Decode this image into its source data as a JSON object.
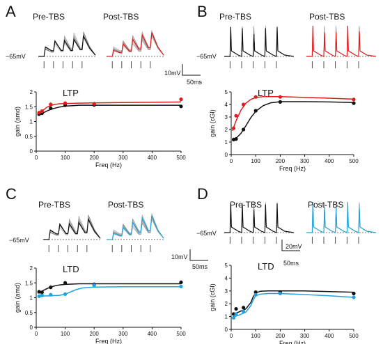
{
  "colors": {
    "pre": "#111111",
    "post_ltp": "#e01b1b",
    "post_ltd": "#1fa3dc",
    "trace_gray": "#7a7a7a"
  },
  "panels": [
    {
      "letter": "A",
      "pre_label": "Pre-TBS",
      "post_label": "Post-TBS",
      "baseline_label": "−65mV",
      "trace_kind": "epsp",
      "post_color": "#e01b1b",
      "scale_bar": {
        "v_label": "10mV",
        "t_label": "50ms"
      },
      "chart_data": {
        "type": "line",
        "title": "LTP",
        "xlabel": "Freq (Hz)",
        "ylabel": "gain (amd)",
        "xlim": [
          0,
          500
        ],
        "ylim": [
          0,
          2
        ],
        "xticks": [
          0,
          100,
          200,
          300,
          400,
          500
        ],
        "yticks": [
          0,
          0.5,
          1,
          1.5,
          2
        ],
        "ytick_labels": [
          "0",
          "0.5",
          "1",
          "1.5",
          "2"
        ],
        "series": [
          {
            "key": "pre",
            "color": "#111111",
            "x": [
              10,
              20,
              50,
              100,
              200,
              500
            ],
            "y": [
              1.25,
              1.28,
              1.45,
              1.55,
              1.56,
              1.51
            ],
            "fit_x": [
              5,
              20,
              40,
              60,
              80,
              100,
              150,
              200,
              300,
              400,
              500
            ],
            "fit_y": [
              1.2,
              1.27,
              1.37,
              1.44,
              1.49,
              1.52,
              1.55,
              1.55,
              1.55,
              1.55,
              1.55
            ]
          },
          {
            "key": "post",
            "color": "#e01b1b",
            "x": [
              10,
              20,
              50,
              100,
              200,
              500
            ],
            "y": [
              1.3,
              1.35,
              1.58,
              1.62,
              1.6,
              1.75
            ],
            "fit_x": [
              5,
              20,
              40,
              60,
              80,
              100,
              150,
              200,
              300,
              400,
              500
            ],
            "fit_y": [
              1.26,
              1.36,
              1.5,
              1.57,
              1.6,
              1.61,
              1.62,
              1.63,
              1.64,
              1.65,
              1.66
            ]
          }
        ]
      }
    },
    {
      "letter": "B",
      "pre_label": "Pre-TBS",
      "post_label": "Post-TBS",
      "baseline_label": "−65mV",
      "trace_kind": "spike",
      "post_color": "#e01b1b",
      "scale_bar": null,
      "chart_data": {
        "type": "line",
        "title": "LTP",
        "xlabel": "Freq (Hz)",
        "ylabel": "gain (cGI)",
        "xlim": [
          0,
          500
        ],
        "ylim": [
          0,
          5
        ],
        "xticks": [
          0,
          100,
          200,
          300,
          400,
          500
        ],
        "yticks": [
          0,
          1,
          2,
          3,
          4,
          5
        ],
        "ytick_labels": [
          "0",
          "1",
          "2",
          "3",
          "4",
          "5"
        ],
        "series": [
          {
            "key": "pre",
            "color": "#111111",
            "x": [
              10,
              20,
              50,
              100,
              200,
              500
            ],
            "y": [
              1.2,
              1.25,
              2.0,
              3.5,
              4.2,
              4.1
            ],
            "fit_x": [
              5,
              20,
              40,
              60,
              80,
              100,
              130,
              160,
              200,
              300,
              400,
              500
            ],
            "fit_y": [
              1.15,
              1.3,
              1.7,
              2.3,
              2.95,
              3.45,
              3.9,
              4.12,
              4.22,
              4.22,
              4.2,
              4.15
            ]
          },
          {
            "key": "post",
            "color": "#e01b1b",
            "x": [
              10,
              20,
              50,
              100,
              200,
              500
            ],
            "y": [
              2.1,
              3.1,
              4.0,
              4.6,
              4.6,
              4.4
            ],
            "fit_x": [
              5,
              20,
              40,
              60,
              80,
              100,
              130,
              160,
              200,
              300,
              400,
              500
            ],
            "fit_y": [
              1.9,
              2.7,
              3.55,
              4.1,
              4.4,
              4.55,
              4.62,
              4.63,
              4.62,
              4.56,
              4.5,
              4.42
            ]
          }
        ]
      }
    },
    {
      "letter": "C",
      "pre_label": "Pre-TBS",
      "post_label": "Post-TBS",
      "baseline_label": "−65mV",
      "trace_kind": "epsp",
      "post_color": "#1fa3dc",
      "scale_bar": {
        "v_label": "10mV",
        "t_label": "50ms"
      },
      "chart_data": {
        "type": "line",
        "title": "LTD",
        "xlabel": "Freq (Hz)",
        "ylabel": "gain (amd)",
        "xlim": [
          0,
          500
        ],
        "ylim": [
          0,
          2
        ],
        "xticks": [
          0,
          100,
          200,
          300,
          400,
          500
        ],
        "yticks": [
          0,
          0.5,
          1,
          1.5,
          2
        ],
        "ytick_labels": [
          "0",
          "0.5",
          "1",
          "1.5",
          "2"
        ],
        "series": [
          {
            "key": "pre",
            "color": "#111111",
            "x": [
              10,
              20,
              50,
              100,
              200,
              500
            ],
            "y": [
              1.2,
              1.18,
              1.35,
              1.5,
              1.45,
              1.52
            ],
            "fit_x": [
              5,
              20,
              40,
              60,
              80,
              100,
              150,
              200,
              300,
              400,
              500
            ],
            "fit_y": [
              1.15,
              1.22,
              1.32,
              1.39,
              1.43,
              1.45,
              1.47,
              1.47,
              1.47,
              1.47,
              1.47
            ]
          },
          {
            "key": "post",
            "color": "#1fa3dc",
            "x": [
              10,
              20,
              50,
              100,
              200,
              500
            ],
            "y": [
              1.05,
              1.08,
              1.1,
              1.12,
              1.42,
              1.38
            ],
            "fit_x": [
              5,
              40,
              80,
              100,
              120,
              140,
              160,
              200,
              300,
              400,
              500
            ],
            "fit_y": [
              1.05,
              1.06,
              1.08,
              1.12,
              1.2,
              1.28,
              1.33,
              1.36,
              1.37,
              1.37,
              1.37
            ]
          }
        ]
      }
    },
    {
      "letter": "D",
      "pre_label": "Pre-TBS",
      "post_label": "Post-TBS",
      "baseline_label": "−65mV",
      "trace_kind": "spike",
      "post_color": "#1fa3dc",
      "scale_bar": {
        "v_label": "20mV",
        "t_label": "50ms"
      },
      "chart_data": {
        "type": "line",
        "title": "LTD",
        "xlabel": "Freq (Hz)",
        "ylabel": "gain (cGI)",
        "xlim": [
          0,
          500
        ],
        "ylim": [
          0,
          5
        ],
        "xticks": [
          0,
          100,
          200,
          300,
          400,
          500
        ],
        "yticks": [
          0,
          1,
          2,
          3,
          4,
          5
        ],
        "ytick_labels": [
          "0",
          "1",
          "2",
          "3",
          "4",
          "5"
        ],
        "series": [
          {
            "key": "pre",
            "color": "#111111",
            "x": [
              10,
              20,
              50,
              100,
              200,
              500
            ],
            "y": [
              1.2,
              1.6,
              1.7,
              2.9,
              2.9,
              2.8
            ],
            "fit_x": [
              5,
              30,
              60,
              80,
              90,
              100,
              120,
              150,
              200,
              300,
              400,
              500
            ],
            "fit_y": [
              1.2,
              1.35,
              1.6,
              2.1,
              2.55,
              2.85,
              2.98,
              3.0,
              3.0,
              3.0,
              2.95,
              2.9
            ]
          },
          {
            "key": "post",
            "color": "#1fa3dc",
            "x": [
              10,
              20,
              50,
              100,
              200,
              500
            ],
            "y": [
              0.9,
              1.2,
              1.4,
              2.7,
              2.8,
              2.5
            ],
            "fit_x": [
              5,
              30,
              60,
              80,
              90,
              100,
              120,
              150,
              200,
              300,
              400,
              500
            ],
            "fit_y": [
              0.95,
              1.1,
              1.35,
              1.85,
              2.3,
              2.62,
              2.75,
              2.8,
              2.8,
              2.72,
              2.62,
              2.5
            ]
          }
        ]
      }
    }
  ]
}
